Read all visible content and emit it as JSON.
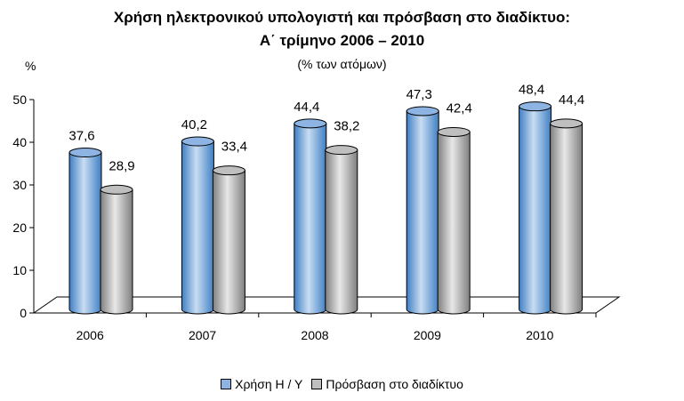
{
  "chart_data": {
    "type": "bar",
    "title": "Χρήση ηλεκτρονικού υπολογιστή και πρόσβαση στο διαδίκτυο:",
    "title_line2": "Α΄ τρίμηνο 2006 – 2010",
    "subtitle": "(% των ατόμων)",
    "ylabel": "%",
    "categories": [
      "2006",
      "2007",
      "2008",
      "2009",
      "2010"
    ],
    "series": [
      {
        "name": "Χρήση Η / Υ",
        "values": [
          "37,6",
          "40,2",
          "44,4",
          "47,3",
          "48,4"
        ],
        "numeric": [
          37.6,
          40.2,
          44.4,
          47.3,
          48.4
        ],
        "color": "#8DB4E2"
      },
      {
        "name": "Πρόσβαση στο διαδίκτυο",
        "values": [
          "28,9",
          "33,4",
          "38,2",
          "42,4",
          "44,4"
        ],
        "numeric": [
          28.9,
          33.4,
          38.2,
          42.4,
          44.4
        ],
        "color": "#BFBFBF"
      }
    ],
    "ylim": [
      0,
      50
    ],
    "yticks": [
      "0",
      "10",
      "20",
      "30",
      "40",
      "50"
    ],
    "grid": false,
    "legend": "bottom"
  }
}
